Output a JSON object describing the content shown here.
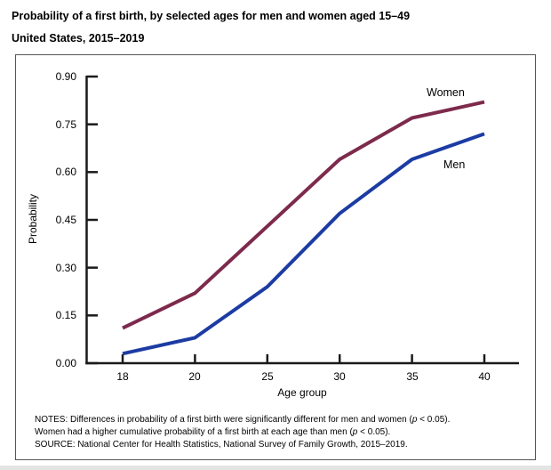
{
  "chart_data": {
    "type": "line",
    "title": "Probability of a first birth, by selected ages for men and women aged 15–49",
    "subtitle": "United States, 2015–2019",
    "categories": [
      18,
      20,
      25,
      30,
      35,
      40
    ],
    "series": [
      {
        "name": "Women",
        "color": "#7d2a4c",
        "values": [
          0.11,
          0.22,
          0.43,
          0.64,
          0.77,
          0.82
        ]
      },
      {
        "name": "Men",
        "color": "#1c3ca3",
        "values": [
          0.03,
          0.08,
          0.24,
          0.47,
          0.64,
          0.72
        ]
      }
    ],
    "xlabel": "Age group",
    "ylabel": "Probability",
    "ylim": [
      0,
      0.9
    ],
    "ytick_step": 0.15,
    "ytick_labels": [
      "0.90",
      "0.75",
      "0.60",
      "0.45",
      "0.30",
      "0.15",
      "0.00"
    ],
    "xtick_labels": [
      "18",
      "20",
      "25",
      "30",
      "35",
      "40"
    ],
    "grid": false,
    "legend": "inline-labels-at-line-ends"
  },
  "notes": {
    "lines": [
      [
        {
          "t": "NOTES: Differences in probability of a first birth were significantly different for men and women ("
        },
        {
          "t": "p",
          "i": true
        },
        {
          "t": " < 0.05)."
        }
      ],
      [
        {
          "t": "Women had a higher cumulative probability of a first birth at each age than men ("
        },
        {
          "t": "p",
          "i": true
        },
        {
          "t": " < 0.05)."
        }
      ],
      [
        {
          "t": "SOURCE: National Center for Health Statistics, National Survey of Family Growth, 2015–2019."
        }
      ]
    ]
  },
  "colors": {
    "axis": "#1a1a1a",
    "panel_border": "#565656",
    "women_line": "#7d2a4c",
    "men_line": "#1c3ca3"
  }
}
